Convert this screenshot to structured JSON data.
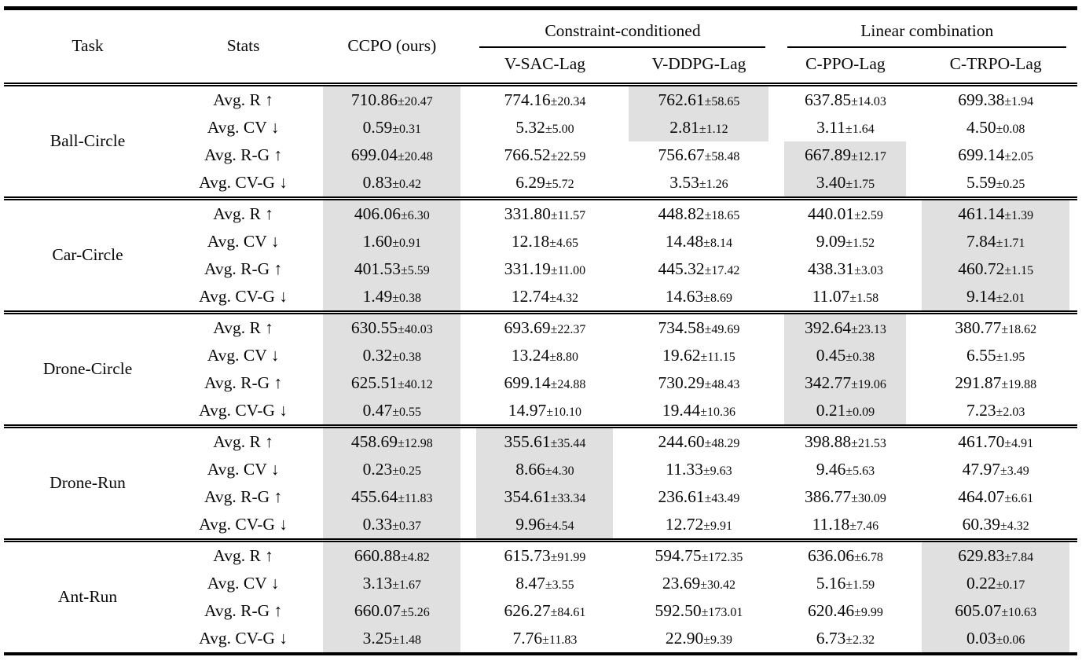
{
  "colors": {
    "highlight": "#e0e0e0",
    "rule": "#000000",
    "text": "#0a0a0a",
    "background": "#ffffff"
  },
  "table": {
    "corner_headers": {
      "task": "Task",
      "stats": "Stats",
      "ccpo": "CCPO (ours)"
    },
    "group_headers": [
      {
        "label": "Constraint-conditioned"
      },
      {
        "label": "Linear combination"
      }
    ],
    "method_headers": [
      "V-SAC-Lag",
      "V-DDPG-Lag",
      "C-PPO-Lag",
      "C-TRPO-Lag"
    ],
    "columns_order": [
      "CCPO (ours)",
      "V-SAC-Lag",
      "V-DDPG-Lag",
      "C-PPO-Lag",
      "C-TRPO-Lag"
    ],
    "groups": [
      {
        "task": "Ball-Circle",
        "rows": [
          {
            "stat": "Avg. R ↑",
            "values": [
              {
                "v": "710.86",
                "pm": "±20.47",
                "hl": true
              },
              {
                "v": "774.16",
                "pm": "±20.34",
                "hl": false
              },
              {
                "v": "762.61",
                "pm": "±58.65",
                "hl": true
              },
              {
                "v": "637.85",
                "pm": "±14.03",
                "hl": false
              },
              {
                "v": "699.38",
                "pm": "±1.94",
                "hl": false
              }
            ]
          },
          {
            "stat": "Avg. CV ↓",
            "values": [
              {
                "v": "0.59",
                "pm": "±0.31",
                "hl": true
              },
              {
                "v": "5.32",
                "pm": "±5.00",
                "hl": false
              },
              {
                "v": "2.81",
                "pm": "±1.12",
                "hl": true
              },
              {
                "v": "3.11",
                "pm": "±1.64",
                "hl": false
              },
              {
                "v": "4.50",
                "pm": "±0.08",
                "hl": false
              }
            ]
          },
          {
            "stat": "Avg. R-G ↑",
            "values": [
              {
                "v": "699.04",
                "pm": "±20.48",
                "hl": true
              },
              {
                "v": "766.52",
                "pm": "±22.59",
                "hl": false
              },
              {
                "v": "756.67",
                "pm": "±58.48",
                "hl": false
              },
              {
                "v": "667.89",
                "pm": "±12.17",
                "hl": true
              },
              {
                "v": "699.14",
                "pm": "±2.05",
                "hl": false
              }
            ]
          },
          {
            "stat": "Avg. CV-G ↓",
            "values": [
              {
                "v": "0.83",
                "pm": "±0.42",
                "hl": true
              },
              {
                "v": "6.29",
                "pm": "±5.72",
                "hl": false
              },
              {
                "v": "3.53",
                "pm": "±1.26",
                "hl": false
              },
              {
                "v": "3.40",
                "pm": "±1.75",
                "hl": true
              },
              {
                "v": "5.59",
                "pm": "±0.25",
                "hl": false
              }
            ]
          }
        ]
      },
      {
        "task": "Car-Circle",
        "rows": [
          {
            "stat": "Avg. R ↑",
            "values": [
              {
                "v": "406.06",
                "pm": "±6.30",
                "hl": true
              },
              {
                "v": "331.80",
                "pm": "±11.57",
                "hl": false
              },
              {
                "v": "448.82",
                "pm": "±18.65",
                "hl": false
              },
              {
                "v": "440.01",
                "pm": "±2.59",
                "hl": false
              },
              {
                "v": "461.14",
                "pm": "±1.39",
                "hl": true
              }
            ]
          },
          {
            "stat": "Avg. CV ↓",
            "values": [
              {
                "v": "1.60",
                "pm": "±0.91",
                "hl": true
              },
              {
                "v": "12.18",
                "pm": "±4.65",
                "hl": false
              },
              {
                "v": "14.48",
                "pm": "±8.14",
                "hl": false
              },
              {
                "v": "9.09",
                "pm": "±1.52",
                "hl": false
              },
              {
                "v": "7.84",
                "pm": "±1.71",
                "hl": true
              }
            ]
          },
          {
            "stat": "Avg. R-G ↑",
            "values": [
              {
                "v": "401.53",
                "pm": "±5.59",
                "hl": true
              },
              {
                "v": "331.19",
                "pm": "±11.00",
                "hl": false
              },
              {
                "v": "445.32",
                "pm": "±17.42",
                "hl": false
              },
              {
                "v": "438.31",
                "pm": "±3.03",
                "hl": false
              },
              {
                "v": "460.72",
                "pm": "±1.15",
                "hl": true
              }
            ]
          },
          {
            "stat": "Avg. CV-G ↓",
            "values": [
              {
                "v": "1.49",
                "pm": "±0.38",
                "hl": true
              },
              {
                "v": "12.74",
                "pm": "±4.32",
                "hl": false
              },
              {
                "v": "14.63",
                "pm": "±8.69",
                "hl": false
              },
              {
                "v": "11.07",
                "pm": "±1.58",
                "hl": false
              },
              {
                "v": "9.14",
                "pm": "±2.01",
                "hl": true
              }
            ]
          }
        ]
      },
      {
        "task": "Drone-Circle",
        "rows": [
          {
            "stat": "Avg. R ↑",
            "values": [
              {
                "v": "630.55",
                "pm": "±40.03",
                "hl": true
              },
              {
                "v": "693.69",
                "pm": "±22.37",
                "hl": false
              },
              {
                "v": "734.58",
                "pm": "±49.69",
                "hl": false
              },
              {
                "v": "392.64",
                "pm": "±23.13",
                "hl": true
              },
              {
                "v": "380.77",
                "pm": "±18.62",
                "hl": false
              }
            ]
          },
          {
            "stat": "Avg. CV ↓",
            "values": [
              {
                "v": "0.32",
                "pm": "±0.38",
                "hl": true
              },
              {
                "v": "13.24",
                "pm": "±8.80",
                "hl": false
              },
              {
                "v": "19.62",
                "pm": "±11.15",
                "hl": false
              },
              {
                "v": "0.45",
                "pm": "±0.38",
                "hl": true
              },
              {
                "v": "6.55",
                "pm": "±1.95",
                "hl": false
              }
            ]
          },
          {
            "stat": "Avg. R-G ↑",
            "values": [
              {
                "v": "625.51",
                "pm": "±40.12",
                "hl": true
              },
              {
                "v": "699.14",
                "pm": "±24.88",
                "hl": false
              },
              {
                "v": "730.29",
                "pm": "±48.43",
                "hl": false
              },
              {
                "v": "342.77",
                "pm": "±19.06",
                "hl": true
              },
              {
                "v": "291.87",
                "pm": "±19.88",
                "hl": false
              }
            ]
          },
          {
            "stat": "Avg. CV-G ↓",
            "values": [
              {
                "v": "0.47",
                "pm": "±0.55",
                "hl": true
              },
              {
                "v": "14.97",
                "pm": "±10.10",
                "hl": false
              },
              {
                "v": "19.44",
                "pm": "±10.36",
                "hl": false
              },
              {
                "v": "0.21",
                "pm": "±0.09",
                "hl": true
              },
              {
                "v": "7.23",
                "pm": "±2.03",
                "hl": false
              }
            ]
          }
        ]
      },
      {
        "task": "Drone-Run",
        "rows": [
          {
            "stat": "Avg. R ↑",
            "values": [
              {
                "v": "458.69",
                "pm": "±12.98",
                "hl": true
              },
              {
                "v": "355.61",
                "pm": "±35.44",
                "hl": true
              },
              {
                "v": "244.60",
                "pm": "±48.29",
                "hl": false
              },
              {
                "v": "398.88",
                "pm": "±21.53",
                "hl": false
              },
              {
                "v": "461.70",
                "pm": "±4.91",
                "hl": false
              }
            ]
          },
          {
            "stat": "Avg. CV ↓",
            "values": [
              {
                "v": "0.23",
                "pm": "±0.25",
                "hl": true
              },
              {
                "v": "8.66",
                "pm": "±4.30",
                "hl": true
              },
              {
                "v": "11.33",
                "pm": "±9.63",
                "hl": false
              },
              {
                "v": "9.46",
                "pm": "±5.63",
                "hl": false
              },
              {
                "v": "47.97",
                "pm": "±3.49",
                "hl": false
              }
            ]
          },
          {
            "stat": "Avg. R-G ↑",
            "values": [
              {
                "v": "455.64",
                "pm": "±11.83",
                "hl": true
              },
              {
                "v": "354.61",
                "pm": "±33.34",
                "hl": true
              },
              {
                "v": "236.61",
                "pm": "±43.49",
                "hl": false
              },
              {
                "v": "386.77",
                "pm": "±30.09",
                "hl": false
              },
              {
                "v": "464.07",
                "pm": "±6.61",
                "hl": false
              }
            ]
          },
          {
            "stat": "Avg. CV-G ↓",
            "values": [
              {
                "v": "0.33",
                "pm": "±0.37",
                "hl": true
              },
              {
                "v": "9.96",
                "pm": "±4.54",
                "hl": true
              },
              {
                "v": "12.72",
                "pm": "±9.91",
                "hl": false
              },
              {
                "v": "11.18",
                "pm": "±7.46",
                "hl": false
              },
              {
                "v": "60.39",
                "pm": "±4.32",
                "hl": false
              }
            ]
          }
        ]
      },
      {
        "task": "Ant-Run",
        "rows": [
          {
            "stat": "Avg. R ↑",
            "values": [
              {
                "v": "660.88",
                "pm": "±4.82",
                "hl": true
              },
              {
                "v": "615.73",
                "pm": "±91.99",
                "hl": false
              },
              {
                "v": "594.75",
                "pm": "±172.35",
                "hl": false
              },
              {
                "v": "636.06",
                "pm": "±6.78",
                "hl": false
              },
              {
                "v": "629.83",
                "pm": "±7.84",
                "hl": true
              }
            ]
          },
          {
            "stat": "Avg. CV ↓",
            "values": [
              {
                "v": "3.13",
                "pm": "±1.67",
                "hl": true
              },
              {
                "v": "8.47",
                "pm": "±3.55",
                "hl": false
              },
              {
                "v": "23.69",
                "pm": "±30.42",
                "hl": false
              },
              {
                "v": "5.16",
                "pm": "±1.59",
                "hl": false
              },
              {
                "v": "0.22",
                "pm": "±0.17",
                "hl": true
              }
            ]
          },
          {
            "stat": "Avg. R-G ↑",
            "values": [
              {
                "v": "660.07",
                "pm": "±5.26",
                "hl": true
              },
              {
                "v": "626.27",
                "pm": "±84.61",
                "hl": false
              },
              {
                "v": "592.50",
                "pm": "±173.01",
                "hl": false
              },
              {
                "v": "620.46",
                "pm": "±9.99",
                "hl": false
              },
              {
                "v": "605.07",
                "pm": "±10.63",
                "hl": true
              }
            ]
          },
          {
            "stat": "Avg. CV-G ↓",
            "values": [
              {
                "v": "3.25",
                "pm": "±1.48",
                "hl": true
              },
              {
                "v": "7.76",
                "pm": "±11.83",
                "hl": false
              },
              {
                "v": "22.90",
                "pm": "±9.39",
                "hl": false
              },
              {
                "v": "6.73",
                "pm": "±2.32",
                "hl": false
              },
              {
                "v": "0.03",
                "pm": "±0.06",
                "hl": true
              }
            ]
          }
        ]
      }
    ]
  }
}
